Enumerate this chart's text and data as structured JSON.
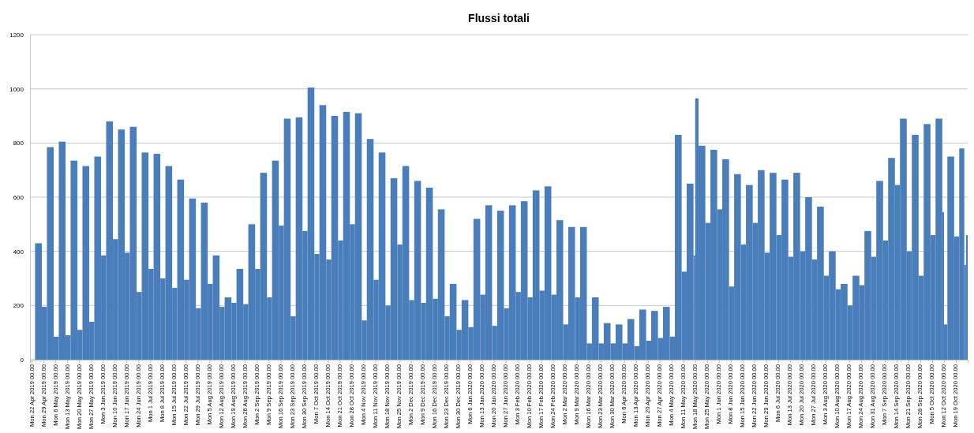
{
  "chart_data": {
    "type": "bar",
    "title": "Flussi totali",
    "color": "#4a7ebb",
    "grid": "y",
    "xlim": [
      "2019-04-21",
      "2020-10-26"
    ],
    "ylim": [
      0,
      1200
    ],
    "yticks": [
      0,
      200,
      400,
      600,
      800,
      1000,
      1200
    ],
    "xticks": [
      {
        "value": "2019-04-22",
        "label": "Mon 22 Apr 2019 00.00"
      },
      {
        "value": "2019-04-29",
        "label": "Mon 29 Apr 2019 00.00"
      },
      {
        "value": "2019-05-06",
        "label": "Mon 6 May 2019 00.00"
      },
      {
        "value": "2019-05-13",
        "label": "Mon 13 May 2019 00.00"
      },
      {
        "value": "2019-05-20",
        "label": "Mon 20 May 2019 00.00"
      },
      {
        "value": "2019-05-27",
        "label": "Mon 27 May 2019 00.00"
      },
      {
        "value": "2019-06-03",
        "label": "Mon 3 Jun 2019 00.00"
      },
      {
        "value": "2019-06-10",
        "label": "Mon 10 Jun 2019 00.00"
      },
      {
        "value": "2019-06-17",
        "label": "Mon 17 Jun 2019 00.00"
      },
      {
        "value": "2019-06-24",
        "label": "Mon 24 Jun 2019 00.00"
      },
      {
        "value": "2019-07-01",
        "label": "Mon 1 Jul 2019 00.00"
      },
      {
        "value": "2019-07-08",
        "label": "Mon 8 Jul 2019 00.00"
      },
      {
        "value": "2019-07-15",
        "label": "Mon 15 Jul 2019 00.00"
      },
      {
        "value": "2019-07-22",
        "label": "Mon 22 Jul 2019 00.00"
      },
      {
        "value": "2019-07-29",
        "label": "Mon 29 Jul 2019 00.00"
      },
      {
        "value": "2019-08-05",
        "label": "Mon 5 Aug 2019 00.00"
      },
      {
        "value": "2019-08-12",
        "label": "Mon 12 Aug 2019 00.00"
      },
      {
        "value": "2019-08-19",
        "label": "Mon 19 Aug 2019 00.00"
      },
      {
        "value": "2019-08-26",
        "label": "Mon 26 Aug 2019 00.00"
      },
      {
        "value": "2019-09-02",
        "label": "Mon 2 Sep 2019 00.00"
      },
      {
        "value": "2019-09-09",
        "label": "Mon 9 Sep 2019 00.00"
      },
      {
        "value": "2019-09-16",
        "label": "Mon 16 Sep 2019 00.00"
      },
      {
        "value": "2019-09-23",
        "label": "Mon 23 Sep 2019 00.00"
      },
      {
        "value": "2019-09-30",
        "label": "Mon 30 Sep 2019 00.00"
      },
      {
        "value": "2019-10-07",
        "label": "Mon 7 Oct 2019 00.00"
      },
      {
        "value": "2019-10-14",
        "label": "Mon 14 Oct 2019 00.00"
      },
      {
        "value": "2019-10-21",
        "label": "Mon 21 Oct 2019 00.00"
      },
      {
        "value": "2019-10-28",
        "label": "Mon 28 Oct 2019 00.00"
      },
      {
        "value": "2019-11-04",
        "label": "Mon 4 Nov 2019 00.00"
      },
      {
        "value": "2019-11-11",
        "label": "Mon 11 Nov 2019 00.00"
      },
      {
        "value": "2019-11-18",
        "label": "Mon 18 Nov 2019 00.00"
      },
      {
        "value": "2019-11-25",
        "label": "Mon 25 Nov 2019 00.00"
      },
      {
        "value": "2019-12-02",
        "label": "Mon 2 Dec 2019 00.00"
      },
      {
        "value": "2019-12-09",
        "label": "Mon 9 Dec 2019 00.00"
      },
      {
        "value": "2019-12-16",
        "label": "Mon 16 Dec 2019 00.00"
      },
      {
        "value": "2019-12-23",
        "label": "Mon 23 Dec 2019 00.00"
      },
      {
        "value": "2019-12-30",
        "label": "Mon 30 Dec 2019 00.00"
      },
      {
        "value": "2020-01-06",
        "label": "Mon 6 Jan 2020 00.00"
      },
      {
        "value": "2020-01-13",
        "label": "Mon 13 Jan 2020 00.00"
      },
      {
        "value": "2020-01-20",
        "label": "Mon 20 Jan 2020 00.00"
      },
      {
        "value": "2020-01-27",
        "label": "Mon 27 Jan 2020 00.00"
      },
      {
        "value": "2020-02-03",
        "label": "Mon 3 Feb 2020 00.00"
      },
      {
        "value": "2020-02-10",
        "label": "Mon 10 Feb 2020 00.00"
      },
      {
        "value": "2020-02-17",
        "label": "Mon 17 Feb 2020 00.00"
      },
      {
        "value": "2020-02-24",
        "label": "Mon 24 Feb 2020 00.00"
      },
      {
        "value": "2020-03-02",
        "label": "Mon 2 Mar 2020 00.00"
      },
      {
        "value": "2020-03-09",
        "label": "Mon 9 Mar 2020 00.00"
      },
      {
        "value": "2020-03-16",
        "label": "Mon 16 Mar 2020 00.00"
      },
      {
        "value": "2020-03-23",
        "label": "Mon 23 Mar 2020 00.00"
      },
      {
        "value": "2020-03-30",
        "label": "Mon 30 Mar 2020 00.00"
      },
      {
        "value": "2020-04-06",
        "label": "Mon 6 Apr 2020 00.00"
      },
      {
        "value": "2020-04-13",
        "label": "Mon 13 Apr 2020 00.00"
      },
      {
        "value": "2020-04-20",
        "label": "Mon 20 Apr 2020 00.00"
      },
      {
        "value": "2020-04-27",
        "label": "Mon 27 Apr 2020 00.00"
      },
      {
        "value": "2020-05-04",
        "label": "Mon 4 May 2020 00.00"
      },
      {
        "value": "2020-05-11",
        "label": "Mon 11 May 2020 00.00"
      },
      {
        "value": "2020-05-18",
        "label": "Mon 18 May 2020 00.00"
      },
      {
        "value": "2020-05-25",
        "label": "Mon 25 May 2020 00.00"
      },
      {
        "value": "2020-06-01",
        "label": "Mon 1 Jun 2020 00.00"
      },
      {
        "value": "2020-06-08",
        "label": "Mon 8 Jun 2020 00.00"
      },
      {
        "value": "2020-06-15",
        "label": "Mon 15 Jun 2020 00.00"
      },
      {
        "value": "2020-06-22",
        "label": "Mon 22 Jun 2020 00.00"
      },
      {
        "value": "2020-06-29",
        "label": "Mon 29 Jun 2020 00.00"
      },
      {
        "value": "2020-07-06",
        "label": "Mon 6 Jul 2020 00.00"
      },
      {
        "value": "2020-07-13",
        "label": "Mon 13 Jul 2020 00.00"
      },
      {
        "value": "2020-07-20",
        "label": "Mon 20 Jul 2020 00.00"
      },
      {
        "value": "2020-07-27",
        "label": "Mon 27 Jul 2020 00.00"
      },
      {
        "value": "2020-08-03",
        "label": "Mon 3 Aug 2020 00.00"
      },
      {
        "value": "2020-08-10",
        "label": "Mon 10 Aug 2020 00.00"
      },
      {
        "value": "2020-08-17",
        "label": "Mon 17 Aug 2020 00.00"
      },
      {
        "value": "2020-08-24",
        "label": "Mon 24 Aug 2020 00.00"
      },
      {
        "value": "2020-08-31",
        "label": "Mon 31 Aug 2020 00.00"
      },
      {
        "value": "2020-09-07",
        "label": "Mon 7 Sep 2020 00.00"
      },
      {
        "value": "2020-09-14",
        "label": "Mon 14 Sep 2020 00.00"
      },
      {
        "value": "2020-09-21",
        "label": "Mon 21 Sep 2020 00.00"
      },
      {
        "value": "2020-09-28",
        "label": "Mon 28 Sep 2020 00.00"
      },
      {
        "value": "2020-10-05",
        "label": "Mon 5 Oct 2020 00.00"
      },
      {
        "value": "2020-10-12",
        "label": "Mon 12 Oct 2020 00.00"
      },
      {
        "value": "2020-10-19",
        "label": "Mon 19 Oct 2020 00.00"
      }
    ],
    "x": [
      "2019-04-24",
      "2019-04-28",
      "2019-05-01",
      "2019-05-05",
      "2019-05-08",
      "2019-05-12",
      "2019-05-15",
      "2019-05-19",
      "2019-05-22",
      "2019-05-26",
      "2019-05-29",
      "2019-06-02",
      "2019-06-05",
      "2019-06-09",
      "2019-06-12",
      "2019-06-16",
      "2019-06-19",
      "2019-06-23",
      "2019-06-26",
      "2019-06-30",
      "2019-07-03",
      "2019-07-07",
      "2019-07-10",
      "2019-07-14",
      "2019-07-17",
      "2019-07-21",
      "2019-07-24",
      "2019-07-28",
      "2019-07-31",
      "2019-08-04",
      "2019-08-07",
      "2019-08-11",
      "2019-08-14",
      "2019-08-18",
      "2019-08-21",
      "2019-08-25",
      "2019-08-28",
      "2019-09-01",
      "2019-09-04",
      "2019-09-08",
      "2019-09-11",
      "2019-09-15",
      "2019-09-18",
      "2019-09-22",
      "2019-09-25",
      "2019-09-29",
      "2019-10-02",
      "2019-10-06",
      "2019-10-09",
      "2019-10-13",
      "2019-10-16",
      "2019-10-20",
      "2019-10-23",
      "2019-10-27",
      "2019-10-30",
      "2019-11-03",
      "2019-11-06",
      "2019-11-10",
      "2019-11-13",
      "2019-11-17",
      "2019-11-20",
      "2019-11-24",
      "2019-11-27",
      "2019-12-01",
      "2019-12-04",
      "2019-12-08",
      "2019-12-11",
      "2019-12-15",
      "2019-12-18",
      "2019-12-22",
      "2019-12-25",
      "2019-12-29",
      "2020-01-01",
      "2020-01-05",
      "2020-01-08",
      "2020-01-12",
      "2020-01-15",
      "2020-01-19",
      "2020-01-22",
      "2020-01-26",
      "2020-01-29",
      "2020-02-02",
      "2020-02-05",
      "2020-02-09",
      "2020-02-12",
      "2020-02-16",
      "2020-02-19",
      "2020-02-23",
      "2020-02-26",
      "2020-03-01",
      "2020-03-04",
      "2020-03-08",
      "2020-03-11",
      "2020-03-15",
      "2020-03-18",
      "2020-03-22",
      "2020-03-25",
      "2020-03-29",
      "2020-04-01",
      "2020-04-05",
      "2020-04-08",
      "2020-04-12",
      "2020-04-15",
      "2020-04-19",
      "2020-04-22",
      "2020-04-26",
      "2020-04-29",
      "2020-05-03",
      "2020-05-06",
      "2020-05-10",
      "2020-05-13",
      "2020-05-17",
      "2020-05-18",
      "2020-05-20",
      "2020-05-24",
      "2020-05-27",
      "2020-05-31",
      "2020-06-03",
      "2020-06-07",
      "2020-06-10",
      "2020-06-14",
      "2020-06-17",
      "2020-06-21",
      "2020-06-24",
      "2020-06-28",
      "2020-07-01",
      "2020-07-05",
      "2020-07-08",
      "2020-07-12",
      "2020-07-15",
      "2020-07-19",
      "2020-07-22",
      "2020-07-26",
      "2020-07-29",
      "2020-08-02",
      "2020-08-05",
      "2020-08-09",
      "2020-08-12",
      "2020-08-16",
      "2020-08-19",
      "2020-08-23",
      "2020-08-26",
      "2020-08-30",
      "2020-09-02",
      "2020-09-06",
      "2020-09-09",
      "2020-09-13",
      "2020-09-16",
      "2020-09-20",
      "2020-09-23",
      "2020-09-27",
      "2020-09-30",
      "2020-10-04",
      "2020-10-07",
      "2020-10-11",
      "2020-10-12",
      "2020-10-14",
      "2020-10-18",
      "2020-10-21",
      "2020-10-24",
      "2020-10-25"
    ],
    "values": [
      430,
      195,
      785,
      85,
      805,
      90,
      735,
      110,
      715,
      140,
      750,
      385,
      880,
      445,
      850,
      395,
      860,
      250,
      765,
      335,
      760,
      300,
      715,
      265,
      665,
      295,
      595,
      190,
      580,
      280,
      385,
      195,
      230,
      210,
      335,
      205,
      500,
      335,
      690,
      230,
      735,
      495,
      890,
      160,
      895,
      475,
      1005,
      390,
      940,
      370,
      900,
      440,
      915,
      500,
      910,
      145,
      815,
      295,
      765,
      200,
      670,
      425,
      715,
      220,
      660,
      210,
      635,
      225,
      555,
      160,
      280,
      110,
      220,
      120,
      520,
      240,
      570,
      125,
      550,
      190,
      570,
      250,
      585,
      230,
      625,
      255,
      640,
      240,
      515,
      130,
      490,
      230,
      490,
      60,
      230,
      60,
      135,
      60,
      130,
      60,
      150,
      50,
      185,
      70,
      180,
      80,
      195,
      85,
      830,
      325,
      650,
      385,
      965,
      790,
      505,
      775,
      555,
      740,
      270,
      685,
      425,
      645,
      505,
      700,
      395,
      690,
      460,
      665,
      380,
      690,
      400,
      600,
      370,
      565,
      310,
      400,
      260,
      280,
      200,
      310,
      275,
      475,
      380,
      660,
      440,
      745,
      645,
      890,
      400,
      830,
      310,
      870,
      460,
      890,
      545,
      130,
      750,
      455,
      780,
      350,
      460
    ]
  }
}
